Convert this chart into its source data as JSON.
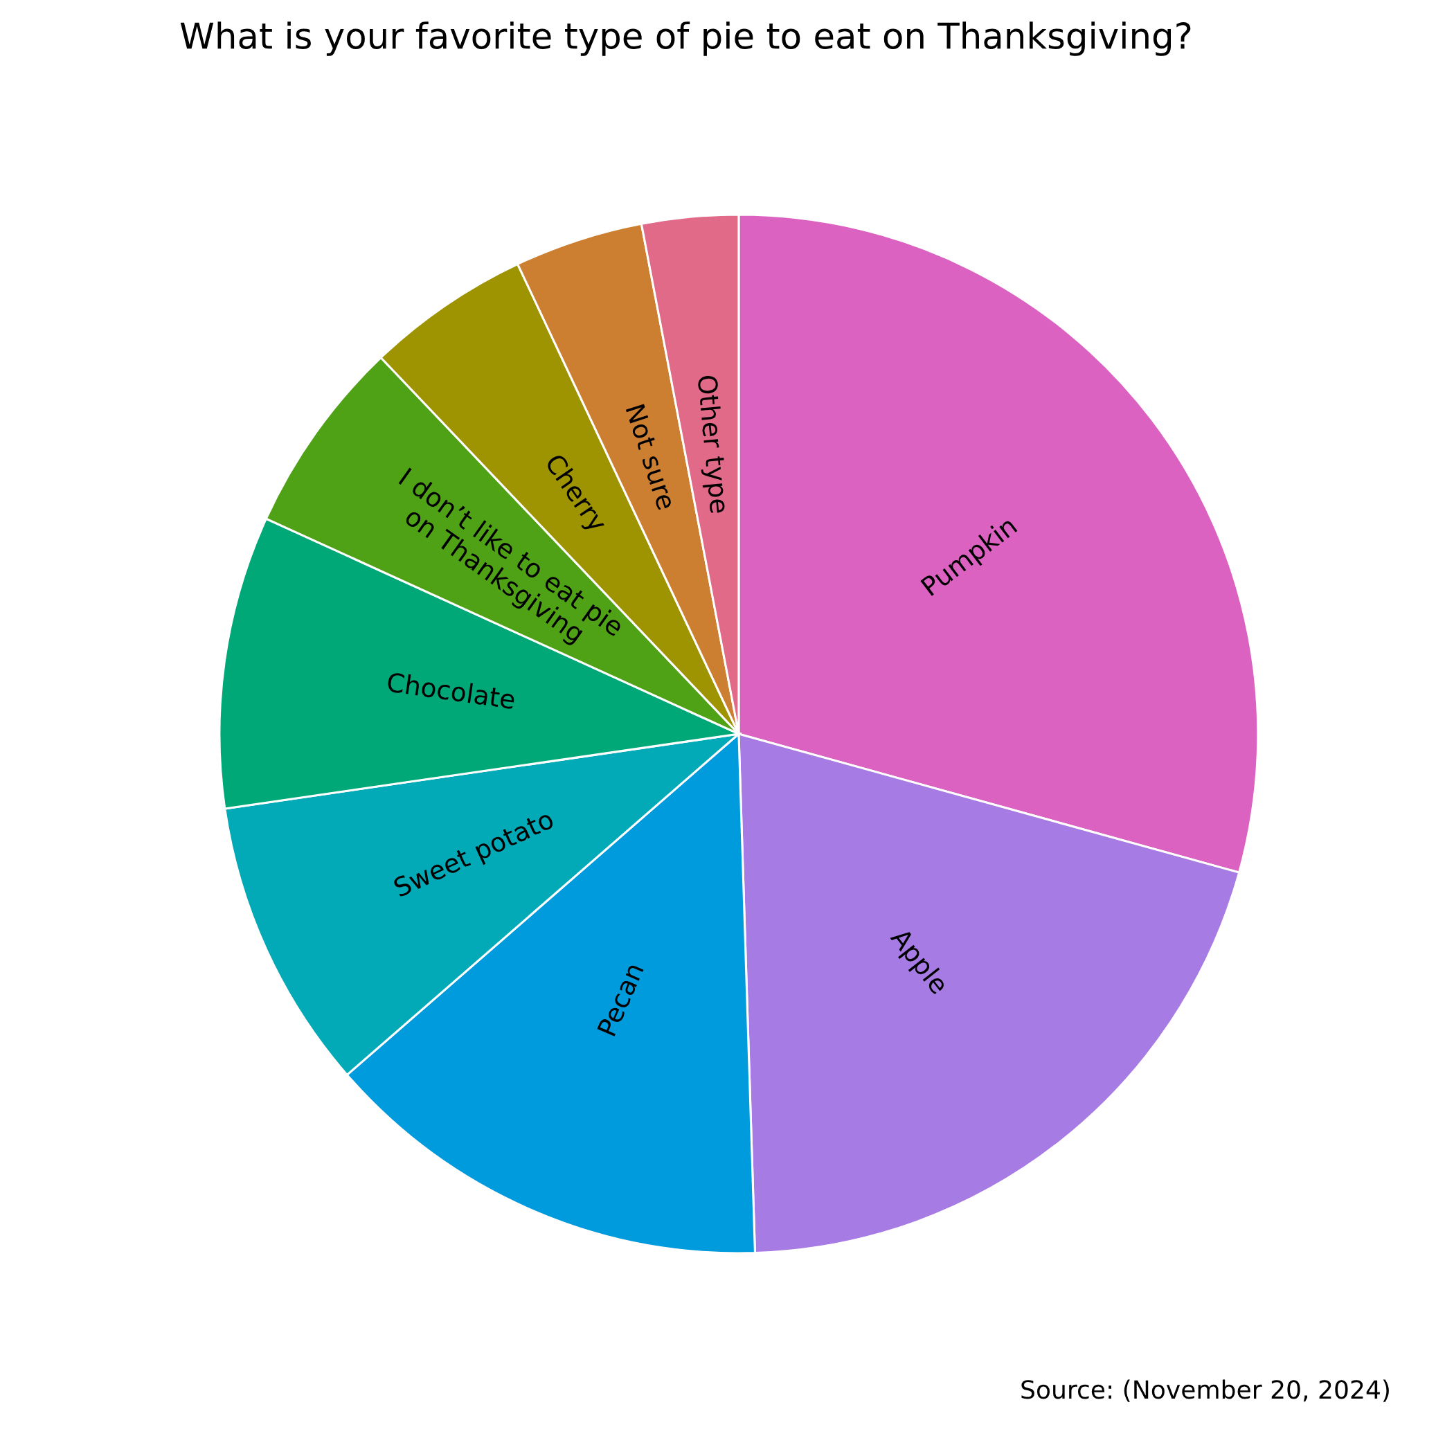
{
  "chart_data": {
    "type": "pie",
    "title": "What is your favorite type of pie to eat on Thanksgiving?",
    "categories": [
      "Pumpkin",
      "Apple",
      "Pecan",
      "Sweet potato",
      "Chocolate",
      "I don’t like to eat pie\non Thanksgiving",
      "Cherry",
      "Not sure",
      "Other type"
    ],
    "values": [
      29.3,
      20.2,
      14.1,
      9.1,
      9.1,
      6.1,
      5.1,
      4.0,
      3.0
    ],
    "colors": [
      "#db62c0",
      "#a67be3",
      "#009bdd",
      "#02a9b6",
      "#00a877",
      "#4fa116",
      "#9e9300",
      "#cc7f31",
      "#e06a87"
    ],
    "annotations": [
      "Source: (November 20, 2024)"
    ]
  }
}
